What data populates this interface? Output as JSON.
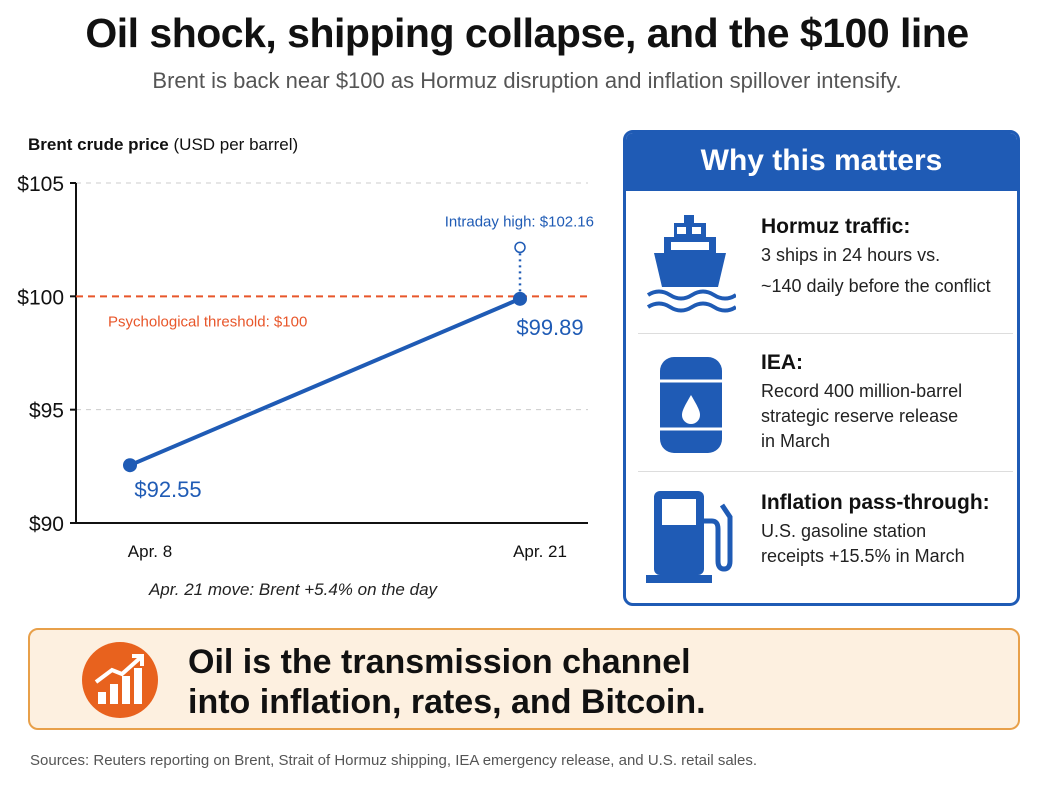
{
  "title": "Oil shock, shipping collapse, and the $100 line",
  "subtitle": "Brent is back near $100 as Hormuz disruption and inflation spillover intensify.",
  "chart_data": {
    "type": "line",
    "title_bold": "Brent crude price",
    "title_unit": "(USD per barrel)",
    "categories": [
      "Apr. 8",
      "Apr. 21"
    ],
    "values": [
      92.55,
      99.89
    ],
    "value_labels": [
      "$92.55",
      "$99.89"
    ],
    "ylim": [
      90,
      105
    ],
    "yticks": [
      90,
      95,
      100,
      105
    ],
    "ytick_labels": [
      "$90",
      "$95",
      "$100",
      "$105"
    ],
    "grid": "horizontal dashed",
    "line_color": "#1f5bb5",
    "threshold": {
      "value": 100,
      "label": "Psychological threshold: $100",
      "color": "#e8562a"
    },
    "intraday_high": {
      "category": "Apr. 21",
      "value": 102.16,
      "label": "Intraday high: $102.16"
    },
    "note": "Apr. 21 move: Brent +5.4% on the day"
  },
  "panel": {
    "heading": "Why this matters",
    "items": [
      {
        "icon": "ship-icon",
        "title": "Hormuz traffic:",
        "lines": [
          "3 ships in 24 hours vs.",
          "~140 daily before the conflict"
        ]
      },
      {
        "icon": "oil-barrel-icon",
        "title": "IEA:",
        "lines": [
          "Record 400 million-barrel",
          "strategic reserve release",
          "in March"
        ]
      },
      {
        "icon": "fuel-pump-icon",
        "title": "Inflation pass-through:",
        "lines": [
          "U.S. gasoline station",
          "receipts +15.5% in March"
        ]
      }
    ]
  },
  "banner": {
    "icon": "rising-chart-icon",
    "lines": [
      "Oil is the transmission channel",
      "into inflation, rates, and Bitcoin."
    ],
    "accent": "#e8621e"
  },
  "sources": "Sources: Reuters reporting on Brent, Strait of Hormuz shipping, IEA emergency release, and U.S. retail sales."
}
